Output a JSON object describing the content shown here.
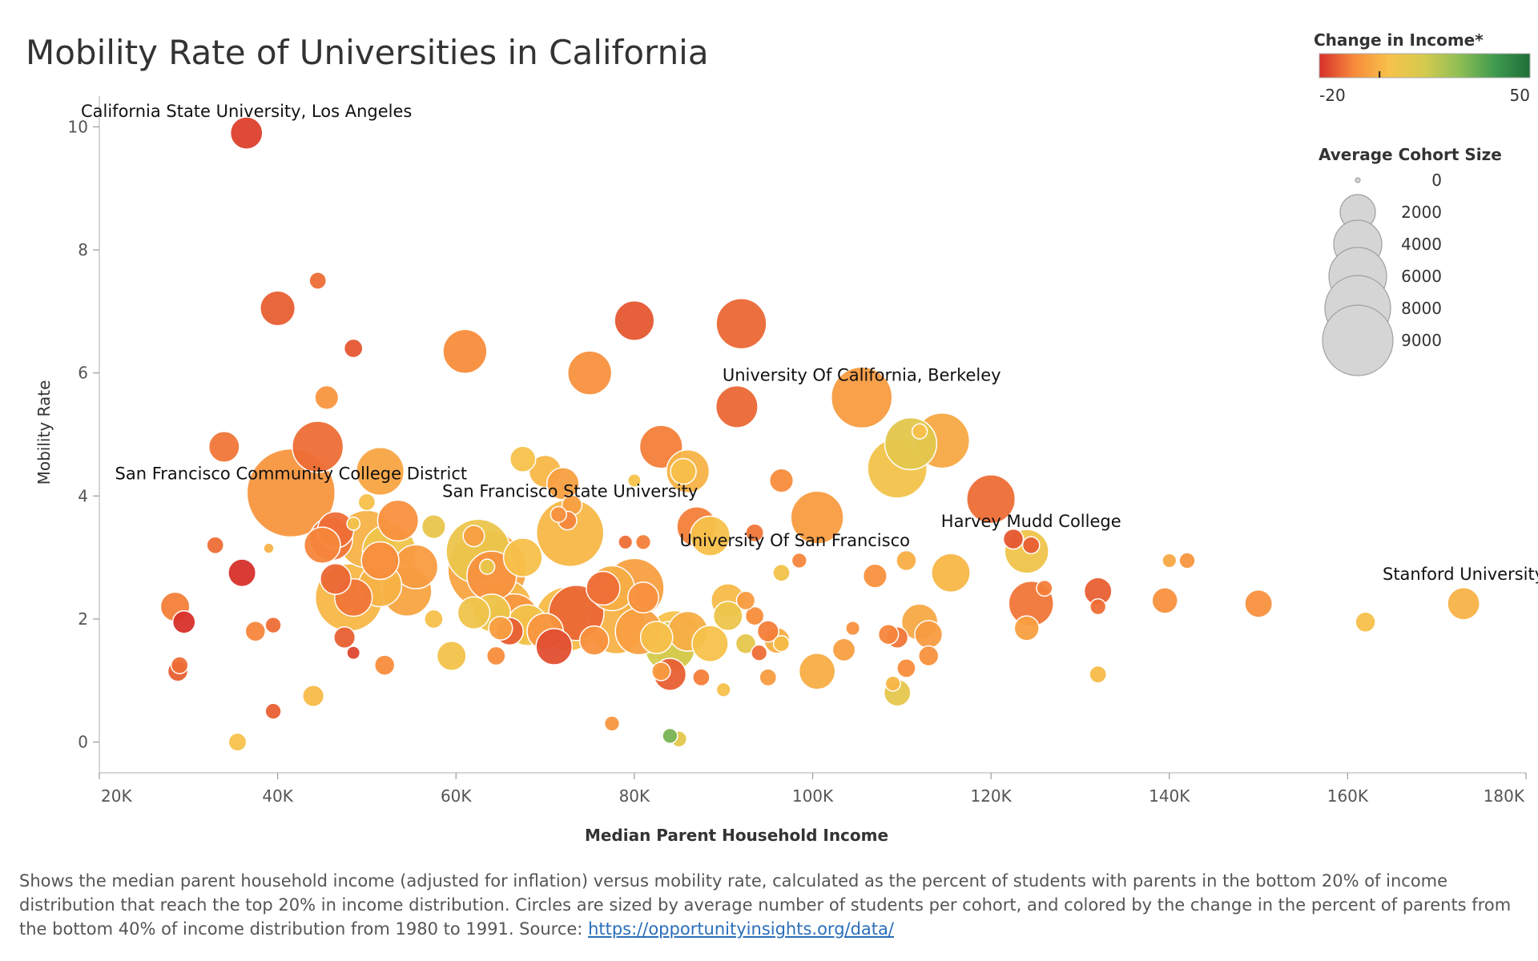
{
  "chart_data": {
    "type": "scatter",
    "title": "Mobility Rate of Universities in California",
    "xlabel": "Median Parent Household Income",
    "ylabel": "Mobility Rate",
    "xlim": [
      20000,
      180000
    ],
    "ylim": [
      -0.5,
      10.5
    ],
    "x_ticks": [
      20000,
      40000,
      60000,
      80000,
      100000,
      120000,
      140000,
      160000,
      180000
    ],
    "x_tick_labels": [
      "20K",
      "40K",
      "60K",
      "80K",
      "100K",
      "120K",
      "140K",
      "160K",
      "180K"
    ],
    "y_ticks": [
      0,
      2,
      4,
      6,
      8,
      10
    ],
    "y_tick_labels": [
      "0",
      "2",
      "4",
      "6",
      "8",
      "10"
    ],
    "grid": false,
    "color_legend": {
      "title": "Change in Income*",
      "min_label": "-20",
      "max_label": "50",
      "min": -20,
      "max": 50,
      "colors": [
        "#d7302a",
        "#f88b3c",
        "#f7c24a",
        "#d4ca4e",
        "#8ebe55",
        "#3f9a4f",
        "#1f6e38"
      ],
      "marker": 0,
      "placement": "top-right"
    },
    "size_legend": {
      "title": "Average Cohort Size",
      "entries": [
        {
          "label": "0",
          "size": 0
        },
        {
          "label": "2000",
          "size": 2000
        },
        {
          "label": "4000",
          "size": 4000
        },
        {
          "label": "6000",
          "size": 6000
        },
        {
          "label": "8000",
          "size": 8000
        },
        {
          "label": "9000",
          "size": 9000
        }
      ],
      "placement": "right"
    },
    "annotations": [
      {
        "text": "California State University, Los Angeles",
        "x": 36500,
        "y": 9.9
      },
      {
        "text": "University Of California, Berkeley",
        "x": 105500,
        "y": 5.6
      },
      {
        "text": "San Francisco Community College District",
        "x": 41500,
        "y": 4.05
      },
      {
        "text": "San Francisco State University",
        "x": 72800,
        "y": 3.4
      },
      {
        "text": "University Of San Francisco",
        "x": 98000,
        "y": 2.95
      },
      {
        "text": "Harvey Mudd College",
        "x": 124500,
        "y": 3.2
      },
      {
        "text": "Stanford University",
        "x": 173000,
        "y": 2.25
      }
    ],
    "points": [
      {
        "x": 36500,
        "y": 9.9,
        "size": 900,
        "change": -18
      },
      {
        "x": 44500,
        "y": 7.5,
        "size": 150,
        "change": -12
      },
      {
        "x": 40000,
        "y": 7.05,
        "size": 1100,
        "change": -14
      },
      {
        "x": 48500,
        "y": 6.4,
        "size": 200,
        "change": -15
      },
      {
        "x": 61000,
        "y": 6.35,
        "size": 1900,
        "change": -8
      },
      {
        "x": 80000,
        "y": 6.85,
        "size": 1500,
        "change": -15
      },
      {
        "x": 92000,
        "y": 6.8,
        "size": 2600,
        "change": -13
      },
      {
        "x": 75000,
        "y": 6.0,
        "size": 1900,
        "change": -7
      },
      {
        "x": 45500,
        "y": 5.6,
        "size": 400,
        "change": -6
      },
      {
        "x": 91500,
        "y": 5.45,
        "size": 1700,
        "change": -13
      },
      {
        "x": 105500,
        "y": 5.6,
        "size": 4000,
        "change": -5
      },
      {
        "x": 34000,
        "y": 4.8,
        "size": 800,
        "change": -11
      },
      {
        "x": 44500,
        "y": 4.8,
        "size": 2700,
        "change": -12
      },
      {
        "x": 114500,
        "y": 4.9,
        "size": 3200,
        "change": -2
      },
      {
        "x": 111000,
        "y": 4.85,
        "size": 2800,
        "change": 10
      },
      {
        "x": 109500,
        "y": 4.45,
        "size": 3800,
        "change": 5
      },
      {
        "x": 83000,
        "y": 4.8,
        "size": 1800,
        "change": -10
      },
      {
        "x": 86000,
        "y": 4.4,
        "size": 1800,
        "change": 0
      },
      {
        "x": 85500,
        "y": 4.4,
        "size": 500,
        "change": 3
      },
      {
        "x": 67500,
        "y": 4.6,
        "size": 500,
        "change": 4
      },
      {
        "x": 70000,
        "y": 4.4,
        "size": 900,
        "change": 1
      },
      {
        "x": 72000,
        "y": 4.2,
        "size": 900,
        "change": -4
      },
      {
        "x": 51500,
        "y": 4.4,
        "size": 2300,
        "change": -3
      },
      {
        "x": 41500,
        "y": 4.05,
        "size": 9000,
        "change": -6
      },
      {
        "x": 96500,
        "y": 4.25,
        "size": 400,
        "change": -8
      },
      {
        "x": 120000,
        "y": 3.95,
        "size": 2400,
        "change": -12
      },
      {
        "x": 100500,
        "y": 3.65,
        "size": 2900,
        "change": -5
      },
      {
        "x": 53500,
        "y": 3.6,
        "size": 1600,
        "change": -7
      },
      {
        "x": 50000,
        "y": 3.9,
        "size": 150,
        "change": 3
      },
      {
        "x": 72800,
        "y": 3.4,
        "size": 5000,
        "change": 1
      },
      {
        "x": 87000,
        "y": 3.5,
        "size": 1500,
        "change": -10
      },
      {
        "x": 88500,
        "y": 3.35,
        "size": 1500,
        "change": 3
      },
      {
        "x": 57500,
        "y": 3.5,
        "size": 400,
        "change": 8
      },
      {
        "x": 46500,
        "y": 3.45,
        "size": 1200,
        "change": -12
      },
      {
        "x": 46000,
        "y": 3.3,
        "size": 1800,
        "change": -11
      },
      {
        "x": 50000,
        "y": 3.3,
        "size": 3500,
        "change": 0
      },
      {
        "x": 45000,
        "y": 3.2,
        "size": 1200,
        "change": -9
      },
      {
        "x": 52500,
        "y": 3.1,
        "size": 3000,
        "change": 6
      },
      {
        "x": 51500,
        "y": 2.95,
        "size": 1300,
        "change": -8
      },
      {
        "x": 55500,
        "y": 2.85,
        "size": 1900,
        "change": -5
      },
      {
        "x": 67500,
        "y": 3.0,
        "size": 1400,
        "change": 3
      },
      {
        "x": 63500,
        "y": 2.8,
        "size": 7000,
        "change": -3
      },
      {
        "x": 62500,
        "y": 3.1,
        "size": 4500,
        "change": 7
      },
      {
        "x": 64000,
        "y": 2.7,
        "size": 2500,
        "change": -7
      },
      {
        "x": 62000,
        "y": 3.35,
        "size": 300,
        "change": -4
      },
      {
        "x": 33000,
        "y": 3.2,
        "size": 150,
        "change": -12
      },
      {
        "x": 36000,
        "y": 2.75,
        "size": 600,
        "change": -20
      },
      {
        "x": 46500,
        "y": 2.65,
        "size": 800,
        "change": -13
      },
      {
        "x": 48000,
        "y": 2.35,
        "size": 5000,
        "change": 1
      },
      {
        "x": 48500,
        "y": 2.35,
        "size": 1300,
        "change": -11
      },
      {
        "x": 51500,
        "y": 2.55,
        "size": 1800,
        "change": 0
      },
      {
        "x": 54500,
        "y": 2.45,
        "size": 2500,
        "change": -3
      },
      {
        "x": 77500,
        "y": 2.5,
        "size": 2000,
        "change": -1
      },
      {
        "x": 80000,
        "y": 2.5,
        "size": 3800,
        "change": -4
      },
      {
        "x": 76500,
        "y": 2.5,
        "size": 1000,
        "change": -12
      },
      {
        "x": 81000,
        "y": 2.35,
        "size": 800,
        "change": -7
      },
      {
        "x": 64000,
        "y": 2.1,
        "size": 1300,
        "change": 7
      },
      {
        "x": 65500,
        "y": 2.2,
        "size": 3000,
        "change": 1
      },
      {
        "x": 66500,
        "y": 2.0,
        "size": 2600,
        "change": -6
      },
      {
        "x": 68000,
        "y": 1.9,
        "size": 1600,
        "change": 5
      },
      {
        "x": 72500,
        "y": 2.0,
        "size": 4500,
        "change": 2
      },
      {
        "x": 73500,
        "y": 2.1,
        "size": 3200,
        "change": -13
      },
      {
        "x": 78000,
        "y": 1.9,
        "size": 3500,
        "change": 0
      },
      {
        "x": 80500,
        "y": 1.8,
        "size": 2200,
        "change": -4
      },
      {
        "x": 82500,
        "y": 1.7,
        "size": 900,
        "change": 3
      },
      {
        "x": 84500,
        "y": 1.7,
        "size": 3000,
        "change": 4
      },
      {
        "x": 84000,
        "y": 1.55,
        "size": 2600,
        "change": 15
      },
      {
        "x": 86000,
        "y": 1.8,
        "size": 1500,
        "change": -1
      },
      {
        "x": 88500,
        "y": 1.6,
        "size": 1200,
        "change": 4
      },
      {
        "x": 70000,
        "y": 1.8,
        "size": 1200,
        "change": -6
      },
      {
        "x": 71000,
        "y": 1.55,
        "size": 1200,
        "change": -16
      },
      {
        "x": 75500,
        "y": 1.65,
        "size": 700,
        "change": -7
      },
      {
        "x": 66000,
        "y": 1.8,
        "size": 600,
        "change": -14
      },
      {
        "x": 65000,
        "y": 1.85,
        "size": 400,
        "change": -4
      },
      {
        "x": 62000,
        "y": 2.1,
        "size": 900,
        "change": 6
      },
      {
        "x": 59500,
        "y": 1.4,
        "size": 700,
        "change": 5
      },
      {
        "x": 57500,
        "y": 2.0,
        "size": 200,
        "change": 3
      },
      {
        "x": 64500,
        "y": 1.4,
        "size": 200,
        "change": -8
      },
      {
        "x": 28500,
        "y": 2.2,
        "size": 700,
        "change": -10
      },
      {
        "x": 29500,
        "y": 1.95,
        "size": 350,
        "change": -20
      },
      {
        "x": 28800,
        "y": 1.15,
        "size": 250,
        "change": -14
      },
      {
        "x": 29000,
        "y": 1.25,
        "size": 150,
        "change": -12
      },
      {
        "x": 37500,
        "y": 1.8,
        "size": 250,
        "change": -9
      },
      {
        "x": 39500,
        "y": 1.9,
        "size": 120,
        "change": -12
      },
      {
        "x": 47500,
        "y": 1.7,
        "size": 300,
        "change": -14
      },
      {
        "x": 48500,
        "y": 1.45,
        "size": 60,
        "change": -17
      },
      {
        "x": 52000,
        "y": 1.25,
        "size": 250,
        "change": -8
      },
      {
        "x": 39500,
        "y": 0.5,
        "size": 120,
        "change": -14
      },
      {
        "x": 44000,
        "y": 0.75,
        "size": 300,
        "change": 2
      },
      {
        "x": 35500,
        "y": 0.0,
        "size": 180,
        "change": 4
      },
      {
        "x": 84000,
        "y": 1.1,
        "size": 900,
        "change": -14
      },
      {
        "x": 83000,
        "y": 1.15,
        "size": 200,
        "change": -5
      },
      {
        "x": 87500,
        "y": 1.05,
        "size": 150,
        "change": -10
      },
      {
        "x": 77500,
        "y": 0.3,
        "size": 100,
        "change": -6
      },
      {
        "x": 84000,
        "y": 0.1,
        "size": 100,
        "change": 30
      },
      {
        "x": 85000,
        "y": 0.05,
        "size": 120,
        "change": 10
      },
      {
        "x": 90000,
        "y": 0.85,
        "size": 80,
        "change": 3
      },
      {
        "x": 95000,
        "y": 1.05,
        "size": 150,
        "change": -5
      },
      {
        "x": 90500,
        "y": 2.3,
        "size": 1000,
        "change": 2
      },
      {
        "x": 90500,
        "y": 2.05,
        "size": 700,
        "change": 7
      },
      {
        "x": 93500,
        "y": 2.05,
        "size": 200,
        "change": -8
      },
      {
        "x": 95000,
        "y": 1.8,
        "size": 300,
        "change": -10
      },
      {
        "x": 96000,
        "y": 1.65,
        "size": 500,
        "change": -1
      },
      {
        "x": 94000,
        "y": 1.45,
        "size": 120,
        "change": -12
      },
      {
        "x": 96500,
        "y": 1.6,
        "size": 120,
        "change": 2
      },
      {
        "x": 92500,
        "y": 1.6,
        "size": 250,
        "change": 9
      },
      {
        "x": 92500,
        "y": 2.3,
        "size": 200,
        "change": -5
      },
      {
        "x": 93500,
        "y": 3.4,
        "size": 180,
        "change": -11
      },
      {
        "x": 96500,
        "y": 2.75,
        "size": 150,
        "change": 5
      },
      {
        "x": 98500,
        "y": 2.95,
        "size": 100,
        "change": -9
      },
      {
        "x": 100500,
        "y": 1.15,
        "size": 1200,
        "change": -1
      },
      {
        "x": 103500,
        "y": 1.5,
        "size": 350,
        "change": -4
      },
      {
        "x": 104500,
        "y": 1.85,
        "size": 80,
        "change": -7
      },
      {
        "x": 107000,
        "y": 2.7,
        "size": 400,
        "change": -7
      },
      {
        "x": 108500,
        "y": 1.75,
        "size": 250,
        "change": -9
      },
      {
        "x": 109500,
        "y": 1.7,
        "size": 300,
        "change": -11
      },
      {
        "x": 109500,
        "y": 0.8,
        "size": 550,
        "change": 9
      },
      {
        "x": 109000,
        "y": 0.95,
        "size": 100,
        "change": 1
      },
      {
        "x": 110500,
        "y": 1.2,
        "size": 200,
        "change": -8
      },
      {
        "x": 110500,
        "y": 2.95,
        "size": 250,
        "change": -1
      },
      {
        "x": 112000,
        "y": 1.95,
        "size": 1200,
        "change": -2
      },
      {
        "x": 113000,
        "y": 1.75,
        "size": 600,
        "change": -5
      },
      {
        "x": 113000,
        "y": 1.4,
        "size": 250,
        "change": -7
      },
      {
        "x": 115500,
        "y": 2.75,
        "size": 1400,
        "change": 1
      },
      {
        "x": 112000,
        "y": 5.05,
        "size": 100,
        "change": 3
      },
      {
        "x": 122500,
        "y": 3.3,
        "size": 250,
        "change": -15
      },
      {
        "x": 124000,
        "y": 3.1,
        "size": 1900,
        "change": 6
      },
      {
        "x": 124500,
        "y": 3.2,
        "size": 150,
        "change": -14
      },
      {
        "x": 124500,
        "y": 2.25,
        "size": 2000,
        "change": -11
      },
      {
        "x": 124000,
        "y": 1.85,
        "size": 450,
        "change": -4
      },
      {
        "x": 126000,
        "y": 2.5,
        "size": 120,
        "change": -10
      },
      {
        "x": 132000,
        "y": 2.45,
        "size": 600,
        "change": -14
      },
      {
        "x": 132000,
        "y": 2.2,
        "size": 120,
        "change": -12
      },
      {
        "x": 132000,
        "y": 1.1,
        "size": 150,
        "change": 2
      },
      {
        "x": 139500,
        "y": 2.3,
        "size": 500,
        "change": -7
      },
      {
        "x": 140000,
        "y": 2.95,
        "size": 80,
        "change": -2
      },
      {
        "x": 142000,
        "y": 2.95,
        "size": 120,
        "change": -6
      },
      {
        "x": 150000,
        "y": 2.25,
        "size": 600,
        "change": -7
      },
      {
        "x": 162000,
        "y": 1.95,
        "size": 250,
        "change": 3
      },
      {
        "x": 173000,
        "y": 2.25,
        "size": 900,
        "change": 0
      },
      {
        "x": 80000,
        "y": 4.25,
        "size": 60,
        "change": 4
      },
      {
        "x": 71500,
        "y": 3.7,
        "size": 120,
        "change": -7
      },
      {
        "x": 73000,
        "y": 3.85,
        "size": 250,
        "change": -4
      },
      {
        "x": 72500,
        "y": 3.6,
        "size": 200,
        "change": -9
      },
      {
        "x": 79000,
        "y": 3.25,
        "size": 80,
        "change": -12
      },
      {
        "x": 81000,
        "y": 3.25,
        "size": 100,
        "change": -10
      },
      {
        "x": 63500,
        "y": 2.85,
        "size": 100,
        "change": 8
      },
      {
        "x": 39000,
        "y": 3.15,
        "size": 20,
        "change": 0
      },
      {
        "x": 48500,
        "y": 3.55,
        "size": 60,
        "change": 5
      }
    ]
  },
  "caption": {
    "text": "Shows the median parent household income (adjusted for inflation) versus mobility rate, calculated as the percent of students with parents in the bottom 20% of income distribution that reach the top 20% in income distribution. Circles are sized by average number of students per cohort, and colored by the change in the percent of parents from the bottom 40% of income distribution from 1980 to 1991. Source: ",
    "link_text": "https://opportunityinsights.org/data/"
  }
}
